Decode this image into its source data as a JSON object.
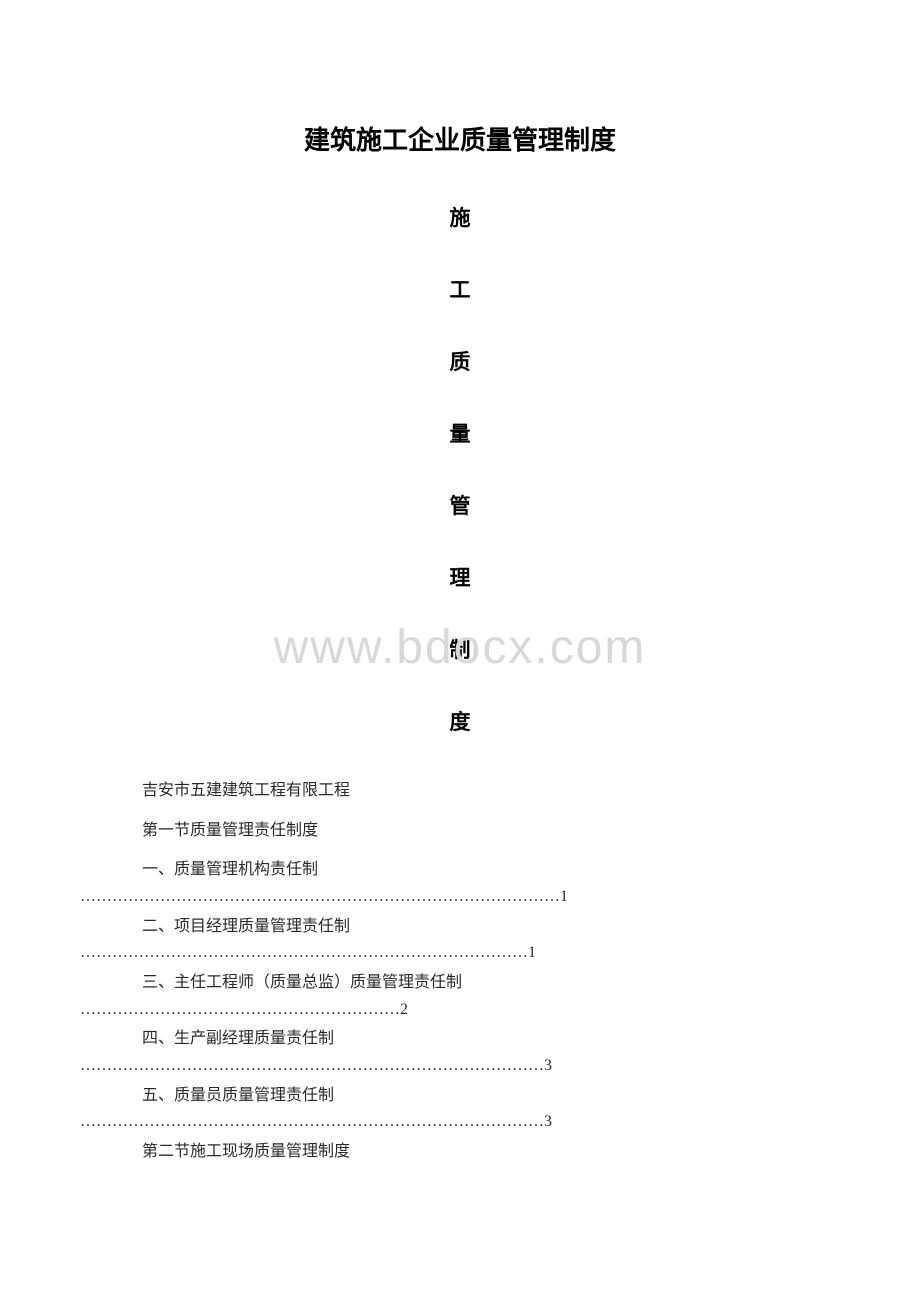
{
  "document": {
    "main_title": "建筑施工企业质量管理制度",
    "vertical_title_chars": [
      "施",
      "工",
      "质",
      "量",
      "管",
      "理",
      "制",
      "度"
    ],
    "watermark": "www.bdocx.com",
    "colors": {
      "background": "#ffffff",
      "title_text": "#000000",
      "body_text": "#2a2a2a",
      "watermark": "#d8d8d8"
    },
    "fonts": {
      "title_family": "SimHei",
      "body_family": "SimSun",
      "main_title_size": 26,
      "vertical_char_size": 21,
      "body_size": 16,
      "watermark_size": 48
    },
    "company_line": "吉安市五建建筑工程有限工程",
    "section1_header": "第一节质量管理责任制度",
    "toc_items": [
      {
        "title": "一、质量管理机构责任制",
        "dots": "………………………………………………………………………………",
        "page": "1"
      },
      {
        "title": "二、项目经理质量管理责任制",
        "dots": "…………………………………………………………………………",
        "page": "1"
      },
      {
        "title": "三、主任工程师（质量总监）质量管理责任制",
        "dots": "……………………………………………………",
        "page": "2"
      },
      {
        "title": "四、生产副经理质量责任制",
        "dots": "……………………………………………………………………………",
        "page": "3"
      },
      {
        "title": "五、质量员质量管理责任制",
        "dots": "……………………………………………………………………………",
        "page": "3"
      }
    ],
    "section2_header": "第二节施工现场质量管理制度"
  }
}
